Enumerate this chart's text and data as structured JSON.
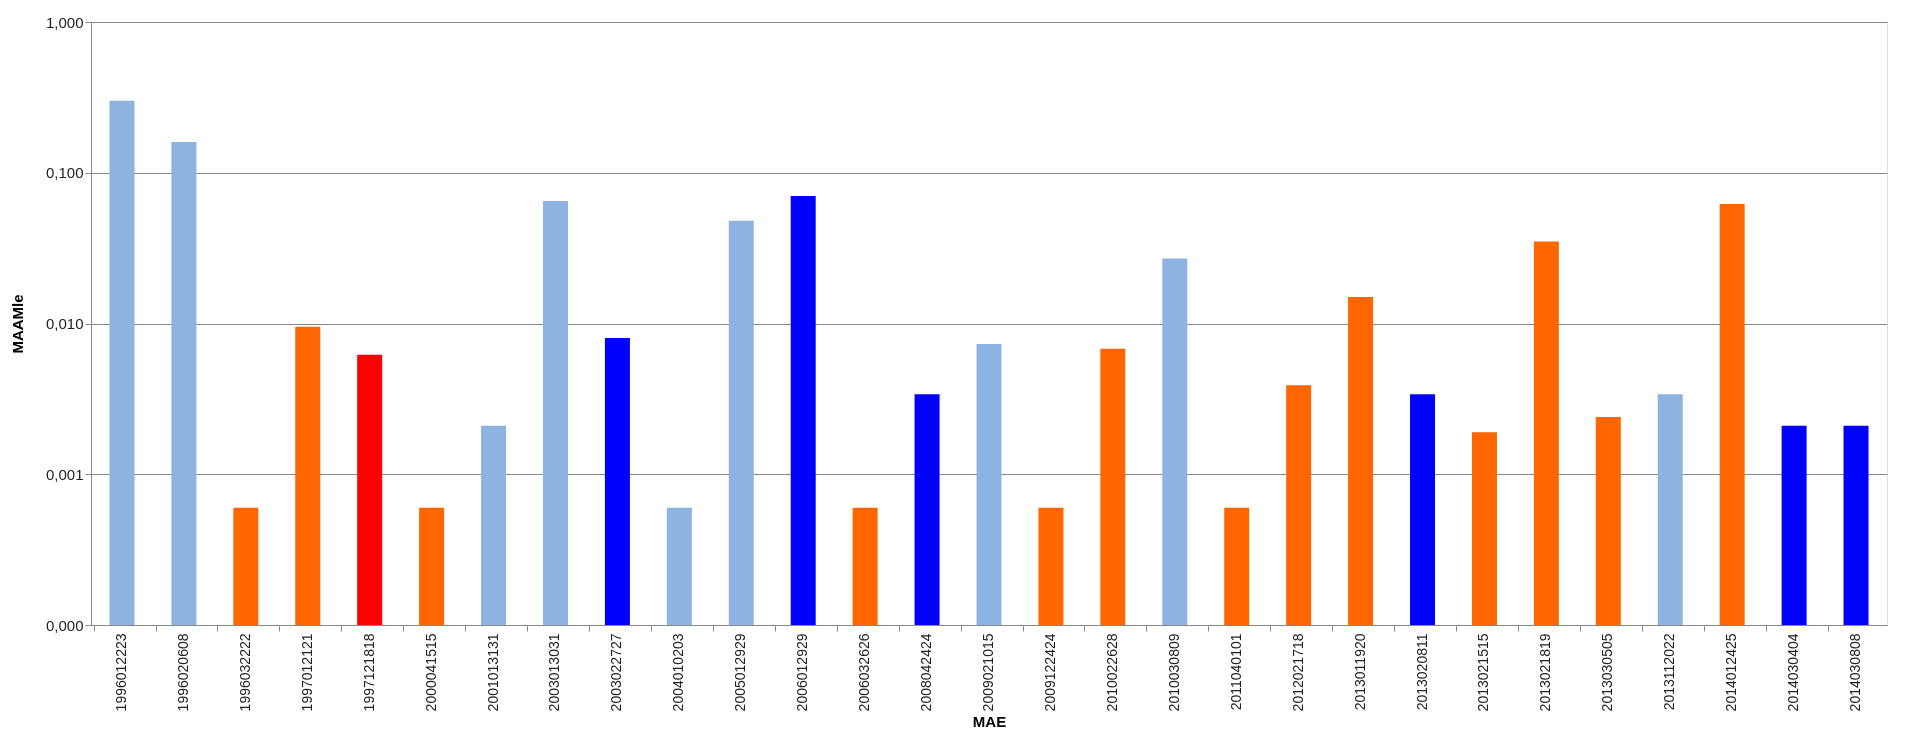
{
  "chart_data": {
    "type": "bar",
    "xlabel": "MAE",
    "ylabel": "MAAMle",
    "log": true,
    "grid": "y",
    "categories": [
      "1996012223",
      "1996020608",
      "1996032222",
      "1997012121",
      "1997121818",
      "2000041515",
      "2001013131",
      "2003013031",
      "2003022727",
      "2004010203",
      "2005012929",
      "2006012929",
      "2006032626",
      "2008042424",
      "2009021015",
      "2009122424",
      "2010022628",
      "2010030809",
      "2011040101",
      "2012021718",
      "2013011920",
      "2013020811",
      "2013021515",
      "2013021819",
      "2013030505",
      "2013112022",
      "2014012425",
      "2014030404",
      "2014030808"
    ],
    "values": [
      0.3,
      0.16,
      0.0006,
      0.0095,
      0.0062,
      0.0006,
      0.0021,
      0.065,
      0.008,
      0.0006,
      0.048,
      0.07,
      0.0006,
      0.0034,
      0.0073,
      0.0006,
      0.0068,
      0.027,
      0.0006,
      0.0039,
      0.015,
      0.0034,
      0.0019,
      0.035,
      0.0024,
      0.0034,
      0.062,
      0.0021,
      0.0021
    ],
    "colors": [
      "#8db3e2",
      "#8db3e2",
      "#ff6600",
      "#ff6600",
      "#ff0000",
      "#ff6600",
      "#8db3e2",
      "#8db3e2",
      "#0000ff",
      "#8db3e2",
      "#8db3e2",
      "#0000ff",
      "#ff6600",
      "#0000ff",
      "#8db3e2",
      "#ff6600",
      "#ff6600",
      "#8db3e2",
      "#ff6600",
      "#ff6600",
      "#ff6600",
      "#0000ff",
      "#ff6600",
      "#ff6600",
      "#ff6600",
      "#8db3e2",
      "#ff6600",
      "#0000ff",
      "#0000ff"
    ],
    "ylim": [
      0.0001,
      1
    ],
    "yticks": [
      {
        "value": 0.0001,
        "label": "0,000"
      },
      {
        "value": 0.001,
        "label": "0,001"
      },
      {
        "value": 0.01,
        "label": "0,010"
      },
      {
        "value": 0.1,
        "label": "0,100"
      },
      {
        "value": 1,
        "label": "1,000"
      }
    ]
  }
}
